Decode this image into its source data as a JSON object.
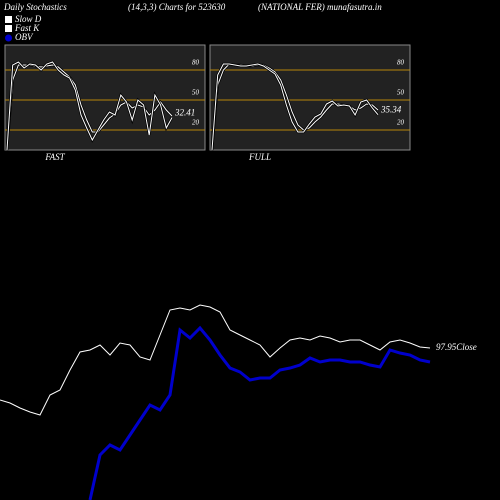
{
  "header": {
    "left": "Daily Stochastics",
    "center": "(14,3,3) Charts for 523630",
    "right": "(NATIONAL FER) munafasutra.in"
  },
  "chart_data": [
    {
      "type": "stochastic",
      "xlabel": "FAST",
      "ylim": [
        0,
        105
      ],
      "yticks": [
        20,
        50,
        80
      ],
      "grid_color": "#b8860b",
      "series": [
        {
          "name": "Slow D",
          "color": "#ffffff",
          "values": [
            0,
            70,
            85,
            85,
            85,
            84,
            83,
            84,
            85,
            83,
            78,
            73,
            65,
            45,
            30,
            18,
            18,
            25,
            32,
            36,
            45,
            48,
            42,
            45,
            43,
            35,
            40,
            48,
            40,
            34
          ]
        },
        {
          "name": "Fast K",
          "color": "#ffffff",
          "values": [
            0,
            85,
            88,
            82,
            86,
            85,
            80,
            86,
            88,
            80,
            75,
            72,
            60,
            35,
            22,
            10,
            20,
            30,
            38,
            35,
            55,
            48,
            30,
            50,
            45,
            15,
            55,
            45,
            22,
            32.41
          ]
        }
      ]
    },
    {
      "type": "stochastic",
      "xlabel": "FULL",
      "ylim": [
        0,
        105
      ],
      "yticks": [
        20,
        50,
        80
      ],
      "grid_color": "#b8860b",
      "series": [
        {
          "color": "#ffffff",
          "values": [
            0,
            65,
            80,
            86,
            85,
            85,
            84,
            84,
            85,
            85,
            82,
            78,
            70,
            55,
            38,
            25,
            20,
            22,
            28,
            33,
            40,
            46,
            46,
            45,
            44,
            40,
            42,
            46,
            45,
            40
          ]
        },
        {
          "color": "#ffffff",
          "values": [
            0,
            75,
            86,
            86,
            85,
            84,
            84,
            85,
            86,
            84,
            80,
            76,
            65,
            45,
            28,
            18,
            18,
            26,
            33,
            36,
            46,
            49,
            44,
            45,
            44,
            35,
            48,
            50,
            42,
            35.34
          ]
        }
      ]
    },
    {
      "type": "line",
      "ylim": [
        67.55,
        109.55
      ],
      "y2lim": [
        0,
        210
      ],
      "series": [
        {
          "name": "Close",
          "color": "#ffffff",
          "values": [
            87.55,
            86.95,
            85.95,
            85.15,
            84.55,
            88.55,
            89.55,
            93.55,
            97.15,
            97.55,
            98.55,
            96.55,
            98.95,
            98.55,
            96.15,
            95.55,
            100.55,
            105.55,
            105.95,
            105.55,
            106.55,
            106.15,
            105.15,
            101.55,
            100.55,
            99.55,
            98.55,
            96.15,
            97.95,
            99.55,
            99.95,
            99.55,
            100.35,
            99.95,
            99.15,
            99.55,
            99.55,
            98.55,
            97.55,
            99.15,
            99.55,
            98.95,
            98.15,
            97.95
          ]
        },
        {
          "name": "OBV",
          "color": "#0000cc",
          "axis": "y2",
          "values": [
            null,
            null,
            null,
            null,
            null,
            null,
            null,
            null,
            null,
            0,
            45,
            55,
            50,
            65,
            80,
            95,
            90,
            105,
            170,
            162,
            172,
            160,
            145,
            132,
            128,
            120,
            122,
            122,
            130,
            132,
            135,
            142,
            138,
            140,
            140,
            138,
            138,
            135,
            133,
            150,
            147,
            145,
            140,
            138
          ]
        }
      ]
    }
  ]
}
